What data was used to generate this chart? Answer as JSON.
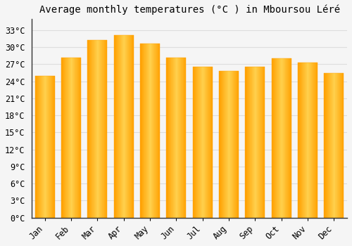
{
  "title": "Average monthly temperatures (°C ) in Mboursou Léré",
  "months": [
    "Jan",
    "Feb",
    "Mar",
    "Apr",
    "May",
    "Jun",
    "Jul",
    "Aug",
    "Sep",
    "Oct",
    "Nov",
    "Dec"
  ],
  "values": [
    25.0,
    28.2,
    31.3,
    32.1,
    30.7,
    28.2,
    26.5,
    25.8,
    26.5,
    28.0,
    27.3,
    25.5
  ],
  "bar_color_center": "#FFD04D",
  "bar_color_edge": "#FFA000",
  "background_color": "#F5F5F5",
  "plot_bg_color": "#F5F5F5",
  "grid_color": "#DDDDDD",
  "spine_color": "#333333",
  "ylim": [
    0,
    35
  ],
  "ytick_max": 33,
  "ytick_step": 3,
  "title_fontsize": 10,
  "tick_fontsize": 8.5,
  "figsize": [
    5.0,
    3.5
  ],
  "dpi": 100
}
